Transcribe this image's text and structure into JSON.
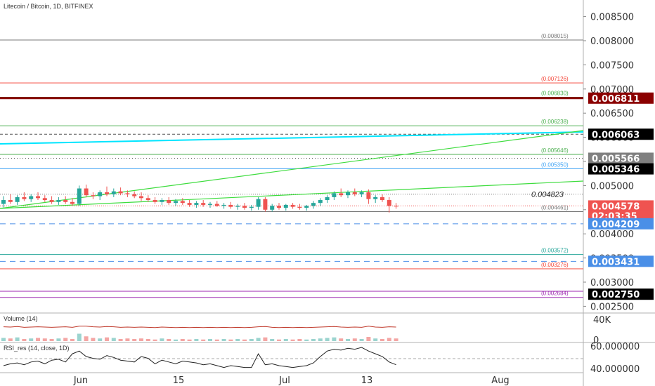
{
  "header": {
    "title": "Litecoin / Bitcoin, 1D, BITFINEX"
  },
  "price_axis": {
    "ticks": [
      "0.008500",
      "0.008000",
      "0.007500",
      "0.007000",
      "0.006500",
      "0.006000",
      "0.005500",
      "0.005000",
      "0.004500",
      "0.004000",
      "0.003500",
      "0.003000",
      "0.002500"
    ],
    "badges": [
      {
        "text": "0.006811",
        "value": 0.006811,
        "bg": "#8b0000",
        "fg": "#ffffff"
      },
      {
        "text": "0.006063",
        "value": 0.006063,
        "bg": "#000000",
        "fg": "#ffffff"
      },
      {
        "text": "0.005566",
        "value": 0.005566,
        "bg": "#808080",
        "fg": "#ffffff"
      },
      {
        "text": "0.005346",
        "value": 0.005346,
        "bg": "#000000",
        "fg": "#ffffff"
      },
      {
        "text": "0.004578",
        "value": 0.004578,
        "bg": "#ef5350",
        "fg": "#ffffff"
      },
      {
        "text": "02:03:35",
        "value": 0.00444,
        "bg": "#ef5350",
        "fg": "#ffffff"
      },
      {
        "text": "0.004209",
        "value": 0.004209,
        "bg": "#4a8fe7",
        "fg": "#ffffff"
      },
      {
        "text": "0.003431",
        "value": 0.003431,
        "bg": "#4a8fe7",
        "fg": "#ffffff"
      },
      {
        "text": "0.002750",
        "value": 0.00275,
        "bg": "#000000",
        "fg": "#ffffff"
      }
    ]
  },
  "levels": [
    {
      "label": "(0.008015)",
      "value": 0.008015,
      "color": "#787878"
    },
    {
      "label": "(0.007126)",
      "value": 0.007126,
      "color": "#f44336"
    },
    {
      "label": "(0.006830)",
      "value": 0.00683,
      "color": "#4caf50"
    },
    {
      "label": "(0.006238)",
      "value": 0.006238,
      "color": "#4caf50"
    },
    {
      "label": "(0.005646)",
      "value": 0.005646,
      "color": "#4caf50"
    },
    {
      "label": "(0.005350)",
      "value": 0.00535,
      "color": "#42a5f5"
    },
    {
      "label": "(0.004461)",
      "value": 0.004461,
      "color": "#787878"
    },
    {
      "label": "(0.003572)",
      "value": 0.003572,
      "color": "#26a69a"
    },
    {
      "label": "(0.003276)",
      "value": 0.003276,
      "color": "#f44336"
    },
    {
      "label": "(0.002684)",
      "value": 0.002684,
      "color": "#9c27b0"
    }
  ],
  "annotation": {
    "text": "0.004823",
    "value": 0.004823
  },
  "volume_panel": {
    "title": "Volume (14)",
    "ticks": [
      "40K",
      "0"
    ]
  },
  "rsi_panel": {
    "title": "RSI_res (14, close, 1D)",
    "ticks": [
      "60.000000",
      "40.000000"
    ]
  },
  "time_axis": {
    "labels": [
      "Jun",
      "15",
      "Jul",
      "13",
      "Aug"
    ]
  },
  "colors": {
    "up": "#26a69a",
    "down": "#ef5350",
    "trend_cyan": "#00e5ff",
    "trend_green": "#3ddc3d",
    "dark_red": "#8b0000"
  },
  "chart_data": {
    "type": "candlestick",
    "title": "Litecoin / Bitcoin, 1D, BITFINEX",
    "ylim": [
      0.0023,
      0.0088
    ],
    "candles": [
      {
        "o": 0.00462,
        "h": 0.00478,
        "l": 0.00455,
        "c": 0.0047
      },
      {
        "o": 0.0047,
        "h": 0.00482,
        "l": 0.00462,
        "c": 0.00466
      },
      {
        "o": 0.00466,
        "h": 0.0048,
        "l": 0.0046,
        "c": 0.00476
      },
      {
        "o": 0.00476,
        "h": 0.00486,
        "l": 0.00468,
        "c": 0.00472
      },
      {
        "o": 0.00472,
        "h": 0.00482,
        "l": 0.00466,
        "c": 0.00478
      },
      {
        "o": 0.00478,
        "h": 0.00486,
        "l": 0.0047,
        "c": 0.00474
      },
      {
        "o": 0.00474,
        "h": 0.0048,
        "l": 0.00466,
        "c": 0.0047
      },
      {
        "o": 0.0047,
        "h": 0.00478,
        "l": 0.00462,
        "c": 0.00466
      },
      {
        "o": 0.00466,
        "h": 0.00476,
        "l": 0.0046,
        "c": 0.0047
      },
      {
        "o": 0.0047,
        "h": 0.00478,
        "l": 0.00462,
        "c": 0.00466
      },
      {
        "o": 0.00466,
        "h": 0.00474,
        "l": 0.00458,
        "c": 0.00462
      },
      {
        "o": 0.00462,
        "h": 0.005,
        "l": 0.00458,
        "c": 0.00494
      },
      {
        "o": 0.00494,
        "h": 0.00502,
        "l": 0.00476,
        "c": 0.0048
      },
      {
        "o": 0.0048,
        "h": 0.00486,
        "l": 0.00472,
        "c": 0.00478
      },
      {
        "o": 0.00478,
        "h": 0.0049,
        "l": 0.0047,
        "c": 0.00486
      },
      {
        "o": 0.00486,
        "h": 0.00498,
        "l": 0.00478,
        "c": 0.00482
      },
      {
        "o": 0.00482,
        "h": 0.00494,
        "l": 0.00476,
        "c": 0.00488
      },
      {
        "o": 0.00488,
        "h": 0.00496,
        "l": 0.0048,
        "c": 0.00484
      },
      {
        "o": 0.00484,
        "h": 0.0049,
        "l": 0.00476,
        "c": 0.00482
      },
      {
        "o": 0.00482,
        "h": 0.00488,
        "l": 0.00474,
        "c": 0.00478
      },
      {
        "o": 0.00478,
        "h": 0.00486,
        "l": 0.00468,
        "c": 0.00474
      },
      {
        "o": 0.00474,
        "h": 0.0048,
        "l": 0.00466,
        "c": 0.0047
      },
      {
        "o": 0.0047,
        "h": 0.00476,
        "l": 0.00462,
        "c": 0.00466
      },
      {
        "o": 0.00466,
        "h": 0.00474,
        "l": 0.0046,
        "c": 0.0047
      },
      {
        "o": 0.0047,
        "h": 0.00476,
        "l": 0.0046,
        "c": 0.00464
      },
      {
        "o": 0.00464,
        "h": 0.00472,
        "l": 0.00458,
        "c": 0.00468
      },
      {
        "o": 0.00468,
        "h": 0.00474,
        "l": 0.0046,
        "c": 0.00464
      },
      {
        "o": 0.00464,
        "h": 0.0047,
        "l": 0.00456,
        "c": 0.0046
      },
      {
        "o": 0.0046,
        "h": 0.00468,
        "l": 0.00454,
        "c": 0.00464
      },
      {
        "o": 0.00464,
        "h": 0.0047,
        "l": 0.00456,
        "c": 0.0046
      },
      {
        "o": 0.0046,
        "h": 0.00466,
        "l": 0.00454,
        "c": 0.00462
      },
      {
        "o": 0.00462,
        "h": 0.00468,
        "l": 0.00456,
        "c": 0.00458
      },
      {
        "o": 0.00458,
        "h": 0.00464,
        "l": 0.00452,
        "c": 0.0046
      },
      {
        "o": 0.0046,
        "h": 0.00466,
        "l": 0.00452,
        "c": 0.00456
      },
      {
        "o": 0.00456,
        "h": 0.00462,
        "l": 0.0045,
        "c": 0.00458
      },
      {
        "o": 0.00458,
        "h": 0.00464,
        "l": 0.0045,
        "c": 0.00454
      },
      {
        "o": 0.00454,
        "h": 0.0046,
        "l": 0.00448,
        "c": 0.00456
      },
      {
        "o": 0.00456,
        "h": 0.00476,
        "l": 0.0045,
        "c": 0.00472
      },
      {
        "o": 0.00472,
        "h": 0.00476,
        "l": 0.00446,
        "c": 0.0045
      },
      {
        "o": 0.0045,
        "h": 0.00462,
        "l": 0.00446,
        "c": 0.00458
      },
      {
        "o": 0.00458,
        "h": 0.00464,
        "l": 0.0045,
        "c": 0.00454
      },
      {
        "o": 0.00454,
        "h": 0.00462,
        "l": 0.00448,
        "c": 0.0046
      },
      {
        "o": 0.0046,
        "h": 0.00464,
        "l": 0.00452,
        "c": 0.00456
      },
      {
        "o": 0.00456,
        "h": 0.00462,
        "l": 0.0045,
        "c": 0.00454
      },
      {
        "o": 0.00454,
        "h": 0.0046,
        "l": 0.00448,
        "c": 0.00458
      },
      {
        "o": 0.00458,
        "h": 0.00468,
        "l": 0.00452,
        "c": 0.00464
      },
      {
        "o": 0.00464,
        "h": 0.00474,
        "l": 0.00458,
        "c": 0.0047
      },
      {
        "o": 0.0047,
        "h": 0.0048,
        "l": 0.00464,
        "c": 0.00476
      },
      {
        "o": 0.00476,
        "h": 0.00488,
        "l": 0.0047,
        "c": 0.00484
      },
      {
        "o": 0.00484,
        "h": 0.00494,
        "l": 0.00476,
        "c": 0.0048
      },
      {
        "o": 0.0048,
        "h": 0.0049,
        "l": 0.00474,
        "c": 0.00486
      },
      {
        "o": 0.00486,
        "h": 0.00494,
        "l": 0.00478,
        "c": 0.00482
      },
      {
        "o": 0.00482,
        "h": 0.0049,
        "l": 0.00476,
        "c": 0.00486
      },
      {
        "o": 0.00486,
        "h": 0.00492,
        "l": 0.00462,
        "c": 0.00472
      },
      {
        "o": 0.00472,
        "h": 0.0048,
        "l": 0.00464,
        "c": 0.00476
      },
      {
        "o": 0.00476,
        "h": 0.00482,
        "l": 0.00466,
        "c": 0.0047
      },
      {
        "o": 0.0047,
        "h": 0.00476,
        "l": 0.00444,
        "c": 0.00458
      },
      {
        "o": 0.00458,
        "h": 0.00464,
        "l": 0.00452,
        "c": 0.004578
      }
    ],
    "volume": [
      6,
      5,
      7,
      4,
      5,
      6,
      5,
      4,
      5,
      6,
      4,
      14,
      9,
      6,
      5,
      7,
      6,
      4,
      5,
      4,
      5,
      4,
      3,
      5,
      4,
      3,
      4,
      3,
      4,
      3,
      4,
      3,
      4,
      3,
      4,
      3,
      4,
      6,
      7,
      4,
      3,
      4,
      3,
      4,
      3,
      4,
      5,
      6,
      7,
      5,
      4,
      5,
      4,
      8,
      5,
      4,
      6,
      5
    ],
    "rsi": [
      42,
      44,
      45,
      43,
      46,
      47,
      44,
      48,
      49,
      46,
      55,
      58,
      52,
      50,
      49,
      53,
      51,
      48,
      47,
      46,
      52,
      50,
      44,
      48,
      46,
      44,
      47,
      46,
      45,
      43,
      44,
      42,
      40,
      42,
      41,
      40,
      40,
      55,
      43,
      44,
      42,
      41,
      40,
      41,
      42,
      45,
      52,
      58,
      60,
      59,
      61,
      60,
      62,
      58,
      55,
      52,
      46,
      43
    ]
  }
}
